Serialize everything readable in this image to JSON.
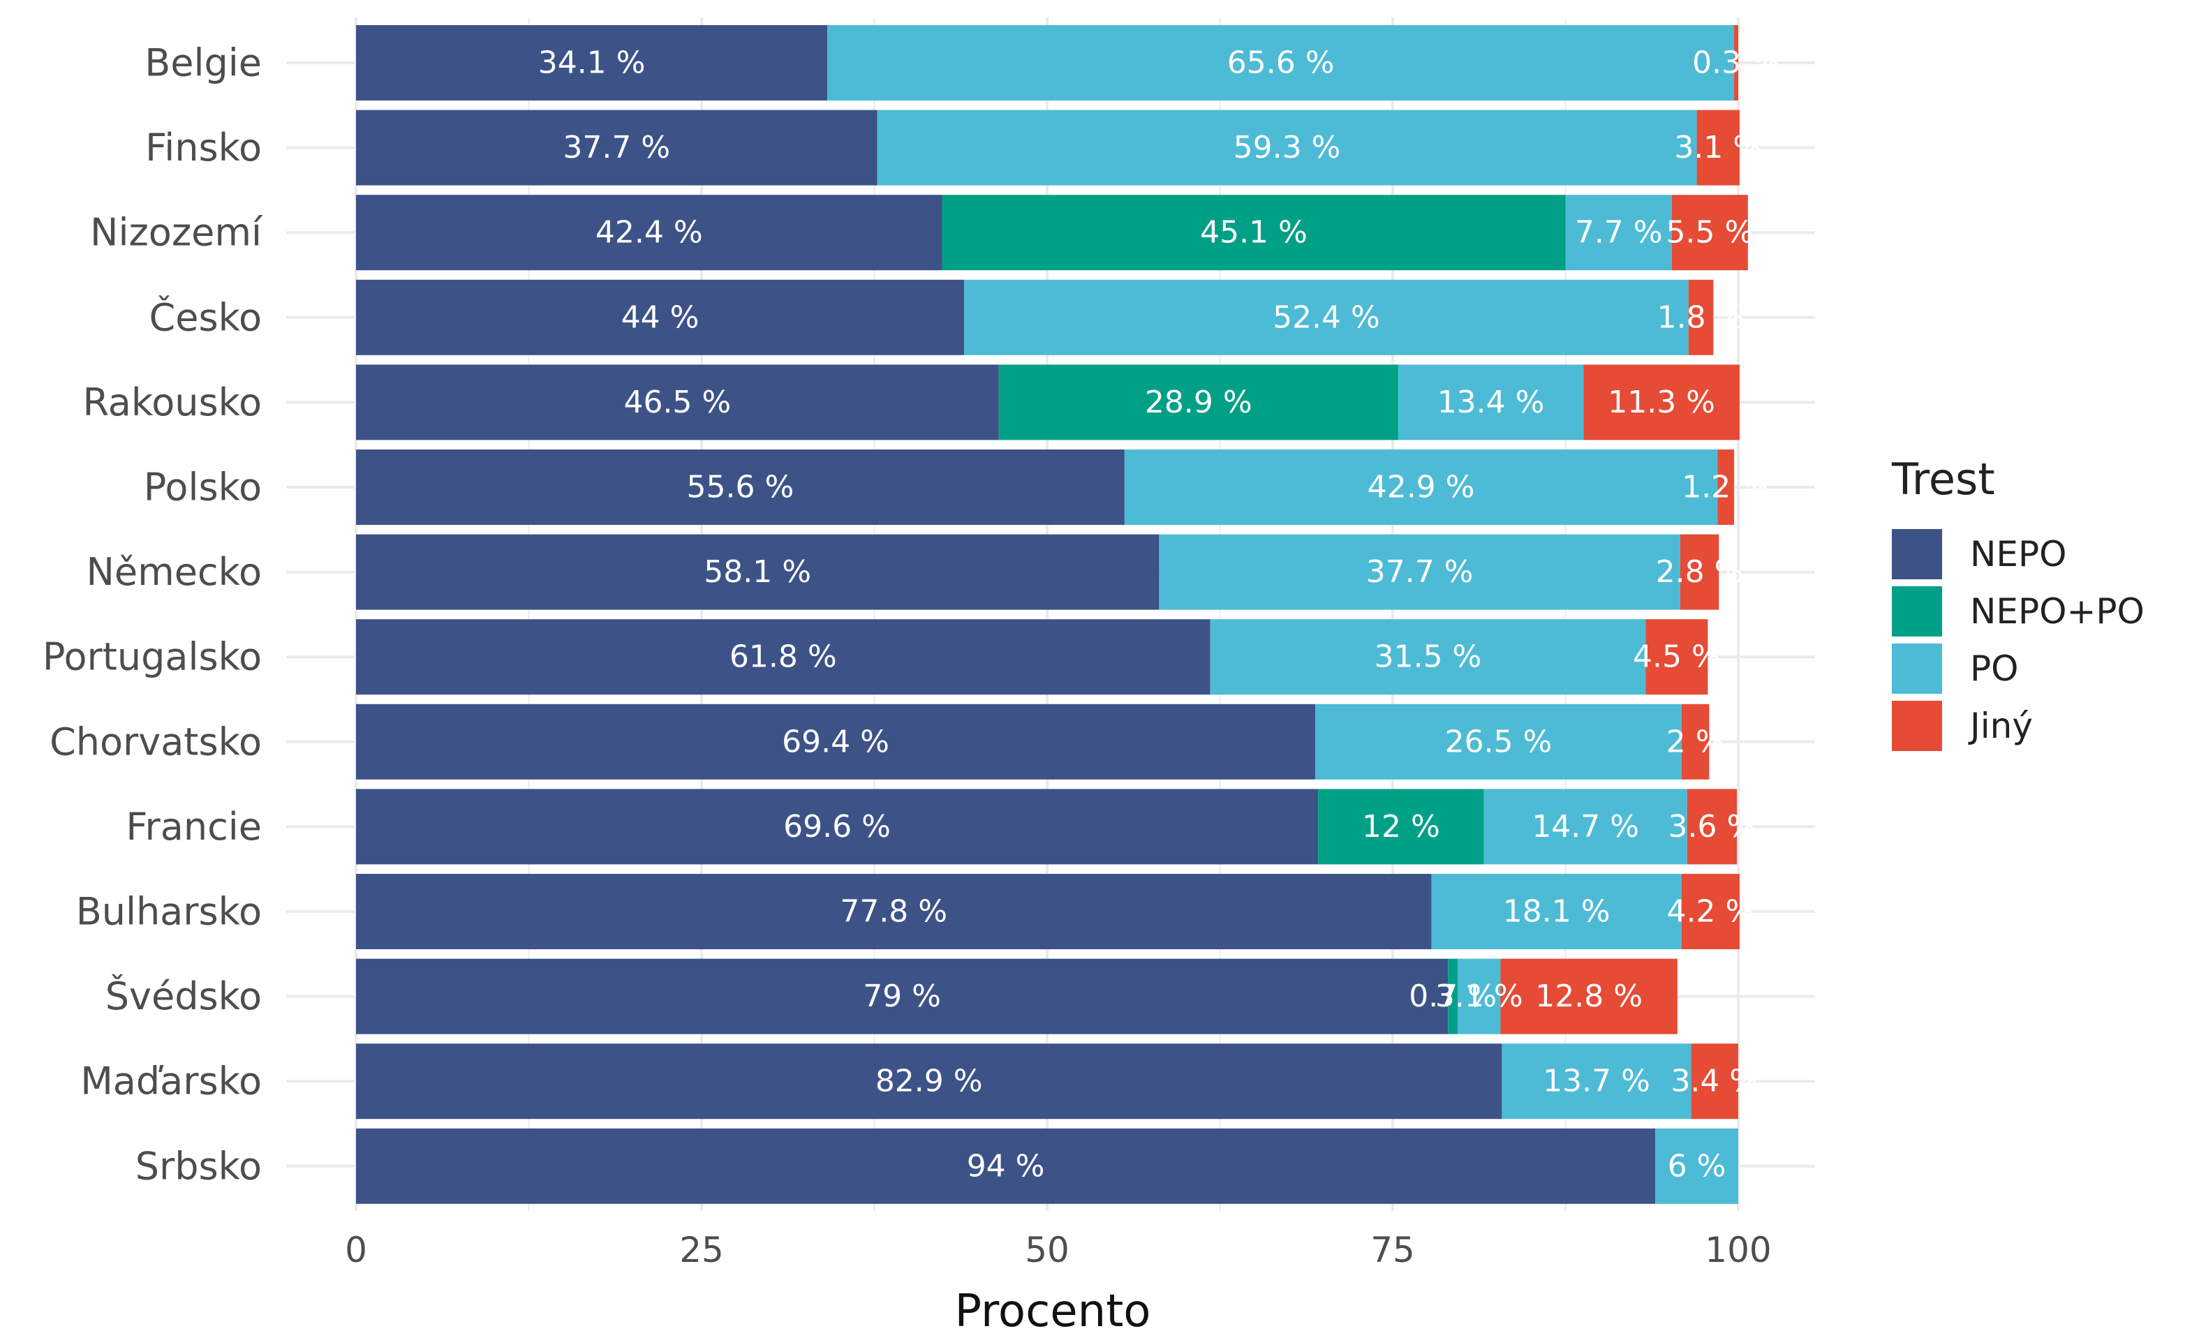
{
  "chart_data": {
    "type": "bar",
    "orientation": "horizontal",
    "stacked": true,
    "xlabel": "Procento",
    "ylabel": "",
    "xlim": [
      0,
      100
    ],
    "x_ticks": [
      "0",
      "25",
      "50",
      "75",
      "100"
    ],
    "grid": true,
    "legend_position": "right",
    "legend_title": "Trest",
    "categories": [
      "Belgie",
      "Finsko",
      "Nizozemí",
      "Česko",
      "Rakousko",
      "Polsko",
      "Německo",
      "Portugalsko",
      "Chorvatsko",
      "Francie",
      "Bulharsko",
      "Švédsko",
      "Maďarsko",
      "Srbsko"
    ],
    "series": [
      {
        "name": "NEPO",
        "color": "#3d5287",
        "values": [
          34.1,
          37.7,
          42.4,
          44,
          46.5,
          55.6,
          58.1,
          61.8,
          69.4,
          69.6,
          77.8,
          79,
          82.9,
          94
        ],
        "labels": [
          "34.1 %",
          "37.7 %",
          "42.4 %",
          "44 %",
          "46.5 %",
          "55.6 %",
          "58.1 %",
          "61.8 %",
          "69.4 %",
          "69.6 %",
          "77.8 %",
          "79 %",
          "82.9 %",
          "94 %"
        ]
      },
      {
        "name": "NEPO+PO",
        "color": "#00a087",
        "values": [
          0,
          0,
          45.1,
          0,
          28.9,
          0,
          0,
          0,
          0,
          12,
          0,
          0.7,
          0,
          0
        ],
        "labels": [
          "",
          "",
          "45.1 %",
          "",
          "28.9 %",
          "",
          "",
          "",
          "",
          "12 %",
          "",
          "0.7 %",
          "",
          ""
        ]
      },
      {
        "name": "PO",
        "color": "#4dbbd5",
        "values": [
          65.6,
          59.3,
          7.7,
          52.4,
          13.4,
          42.9,
          37.7,
          31.5,
          26.5,
          14.7,
          18.1,
          3.1,
          13.7,
          6
        ],
        "labels": [
          "65.6 %",
          "59.3 %",
          "7.7 %",
          "52.4 %",
          "13.4 %",
          "42.9 %",
          "37.7 %",
          "31.5 %",
          "26.5 %",
          "14.7 %",
          "18.1 %",
          "3.1 %",
          "13.7 %",
          "6 %"
        ]
      },
      {
        "name": "Jiný",
        "color": "#e64b35",
        "values": [
          0.3,
          3.1,
          5.5,
          1.8,
          11.3,
          1.2,
          2.8,
          4.5,
          2,
          3.6,
          4.2,
          12.8,
          3.4,
          0
        ],
        "labels": [
          "0.3 %",
          "3.1 %",
          "5.5 %",
          "1.8 %",
          "11.3 %",
          "1.2 %",
          "2.8 %",
          "4.5 %",
          "2 %",
          "3.6 %",
          "4.2 %",
          "12.8 %",
          "3.4 %",
          ""
        ]
      }
    ]
  }
}
